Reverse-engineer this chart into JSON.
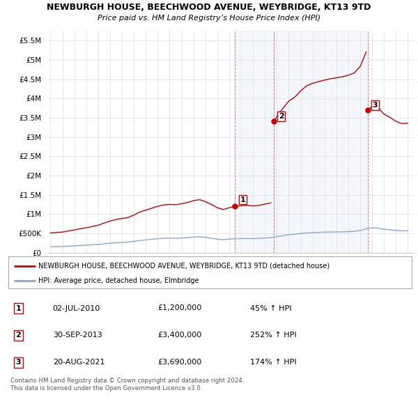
{
  "title": "NEWBURGH HOUSE, BEECHWOOD AVENUE, WEYBRIDGE, KT13 9TD",
  "subtitle": "Price paid vs. HM Land Registry’s House Price Index (HPI)",
  "legend_line1": "NEWBURGH HOUSE, BEECHWOOD AVENUE, WEYBRIDGE, KT13 9TD (detached house)",
  "legend_line2": "HPI: Average price, detached house, Elmbridge",
  "footnote1": "Contains HM Land Registry data © Crown copyright and database right 2024.",
  "footnote2": "This data is licensed under the Open Government Licence v3.0.",
  "sale_color": "#cc0000",
  "hpi_color": "#88aacc",
  "ylim": [
    0,
    5750000
  ],
  "yticks": [
    0,
    500000,
    1000000,
    1500000,
    2000000,
    2500000,
    3000000,
    3500000,
    4000000,
    4500000,
    5000000,
    5500000
  ],
  "ytick_labels": [
    "£0",
    "£500K",
    "£1M",
    "£1.5M",
    "£2M",
    "£2.5M",
    "£3M",
    "£3.5M",
    "£4M",
    "£4.5M",
    "£5M",
    "£5.5M"
  ],
  "sales": [
    {
      "date_num": 2010.5,
      "price": 1200000,
      "label": "1"
    },
    {
      "date_num": 2013.75,
      "price": 3400000,
      "label": "2"
    },
    {
      "date_num": 2021.63,
      "price": 3690000,
      "label": "3"
    }
  ],
  "table_rows": [
    {
      "num": "1",
      "date": "02-JUL-2010",
      "price": "£1,200,000",
      "hpi": "45% ↑ HPI"
    },
    {
      "num": "2",
      "date": "30-SEP-2013",
      "price": "£3,400,000",
      "hpi": "252% ↑ HPI"
    },
    {
      "num": "3",
      "date": "20-AUG-2021",
      "price": "£3,690,000",
      "hpi": "174% ↑ HPI"
    }
  ],
  "vline_dates": [
    2010.5,
    2013.75,
    2021.63
  ],
  "hpi_years": [
    1995,
    1995.5,
    1996,
    1996.5,
    1997,
    1997.5,
    1998,
    1998.5,
    1999,
    1999.5,
    2000,
    2000.5,
    2001,
    2001.5,
    2002,
    2002.5,
    2003,
    2003.5,
    2004,
    2004.5,
    2005,
    2005.5,
    2006,
    2006.5,
    2007,
    2007.5,
    2008,
    2008.5,
    2009,
    2009.5,
    2010,
    2010.5,
    2011,
    2011.5,
    2012,
    2012.5,
    2013,
    2013.5,
    2014,
    2014.5,
    2015,
    2015.5,
    2016,
    2016.5,
    2017,
    2017.5,
    2018,
    2018.5,
    2019,
    2019.5,
    2020,
    2020.5,
    2021,
    2021.5,
    2022,
    2022.5,
    2023,
    2023.5,
    2024,
    2024.5,
    2025
  ],
  "hpi_vals": [
    155000,
    158000,
    162000,
    170000,
    178000,
    188000,
    195000,
    205000,
    215000,
    232000,
    248000,
    260000,
    268000,
    275000,
    295000,
    318000,
    333000,
    348000,
    363000,
    374000,
    378000,
    375000,
    383000,
    393000,
    407000,
    415000,
    400000,
    378000,
    352000,
    338000,
    352000,
    362000,
    368000,
    370000,
    366000,
    370000,
    380000,
    390000,
    420000,
    445000,
    468000,
    480000,
    500000,
    515000,
    523000,
    528000,
    533000,
    537000,
    540000,
    543000,
    548000,
    555000,
    575000,
    620000,
    645000,
    638000,
    610000,
    595000,
    578000,
    568000,
    570000
  ],
  "sale_segments": [
    {
      "years": [
        1995,
        1995.5,
        1996,
        1996.5,
        1997,
        1997.5,
        1998,
        1998.5,
        1999,
        1999.5,
        2000,
        2000.5,
        2001,
        2001.5,
        2002,
        2002.5,
        2003,
        2003.5,
        2004,
        2004.5,
        2005,
        2005.5,
        2006,
        2006.5,
        2007,
        2007.5,
        2008,
        2008.5,
        2009,
        2009.5,
        2010,
        2010.5
      ],
      "scale": 3.31
    },
    {
      "years": [
        2010.5,
        2011,
        2011.5,
        2012,
        2012.5,
        2013,
        2013.75
      ],
      "scale": 3.31
    },
    {
      "years": [
        2013.75,
        2014,
        2014.5,
        2015,
        2015.5,
        2016,
        2016.5,
        2017,
        2017.5,
        2018,
        2018.5,
        2019,
        2019.5,
        2020,
        2020.5,
        2021,
        2021.63
      ],
      "scale": 8.72
    },
    {
      "years": [
        2021.63,
        2022,
        2022.5,
        2023,
        2023.5,
        2024,
        2024.5,
        2025
      ],
      "scale": 6.41
    }
  ]
}
